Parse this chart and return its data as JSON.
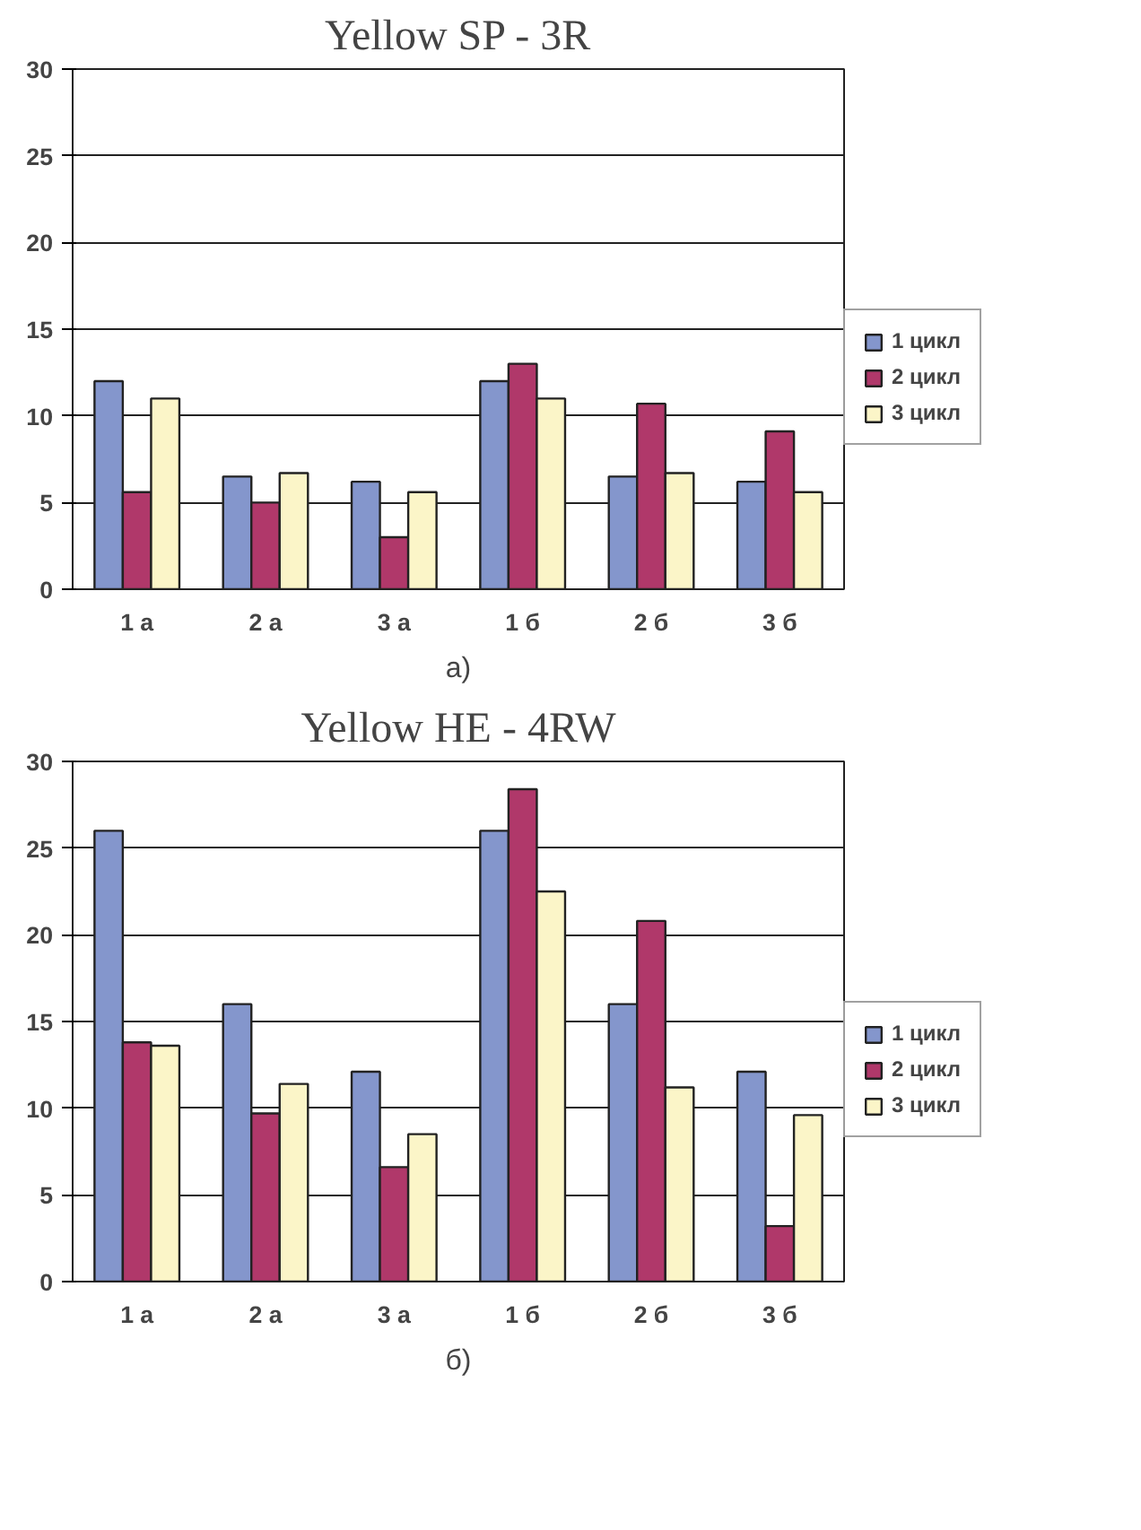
{
  "chart_data": [
    {
      "type": "bar",
      "title": "Yellow SP - 3R",
      "categories": [
        "1 а",
        "2 а",
        "3 а",
        "1 б",
        "2 б",
        "3 б"
      ],
      "series": [
        {
          "name": "1 цикл",
          "color": "#8496cc",
          "values": [
            12.0,
            6.5,
            6.2,
            12.0,
            6.5,
            6.2
          ]
        },
        {
          "name": "2 цикл",
          "color": "#b0386a",
          "values": [
            5.6,
            5.0,
            3.0,
            13.0,
            10.7,
            9.1
          ]
        },
        {
          "name": "3 цикл",
          "color": "#fbf5c8",
          "values": [
            11.0,
            6.7,
            5.6,
            11.0,
            6.7,
            5.6
          ]
        }
      ],
      "ylim": [
        0,
        30
      ],
      "yticks": [
        0,
        5,
        10,
        15,
        20,
        25,
        30
      ],
      "grid": "y",
      "legend": "right",
      "annotations": [
        "а)"
      ]
    },
    {
      "type": "bar",
      "title": "Yellow HE - 4RW",
      "categories": [
        "1 а",
        "2 а",
        "3 а",
        "1 б",
        "2 б",
        "3 б"
      ],
      "series": [
        {
          "name": "1 цикл",
          "color": "#8496cc",
          "values": [
            26.0,
            16.0,
            12.1,
            26.0,
            16.0,
            12.1
          ]
        },
        {
          "name": "2 цикл",
          "color": "#b0386a",
          "values": [
            13.8,
            9.7,
            6.6,
            28.4,
            20.8,
            3.2
          ]
        },
        {
          "name": "3 цикл",
          "color": "#fbf5c8",
          "values": [
            13.6,
            11.4,
            8.5,
            22.5,
            11.2,
            9.6
          ]
        }
      ],
      "ylim": [
        0,
        30
      ],
      "yticks": [
        0,
        5,
        10,
        15,
        20,
        25,
        30
      ],
      "grid": "y",
      "legend": "right",
      "annotations": [
        "б)"
      ]
    }
  ]
}
